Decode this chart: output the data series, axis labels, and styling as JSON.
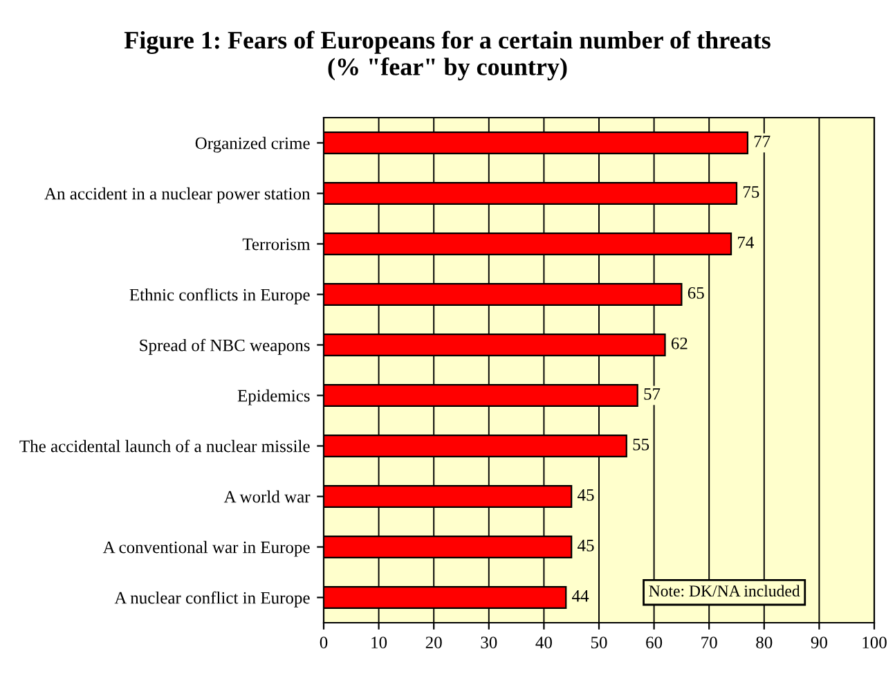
{
  "chart_data": {
    "type": "bar",
    "orientation": "horizontal",
    "title": "Figure 1: Fears of Europeans for a certain number of threats\n(% \"fear\" by country)",
    "categories": [
      "Organized crime",
      "An accident in a nuclear power station",
      "Terrorism",
      "Ethnic conflicts in Europe",
      "Spread of NBC weapons",
      "Epidemics",
      "The accidental launch of a nuclear missile",
      "A world war",
      "A conventional war in Europe",
      "A nuclear conflict in Europe"
    ],
    "values": [
      77,
      75,
      74,
      65,
      62,
      57,
      55,
      45,
      45,
      44
    ],
    "color": "#ff0000",
    "xlim": [
      0,
      100
    ],
    "xticks": [
      0,
      10,
      20,
      30,
      40,
      50,
      60,
      70,
      80,
      90,
      100
    ],
    "grid": "x",
    "data_labels": true,
    "annotations": [
      "Note: DK/NA included"
    ]
  }
}
